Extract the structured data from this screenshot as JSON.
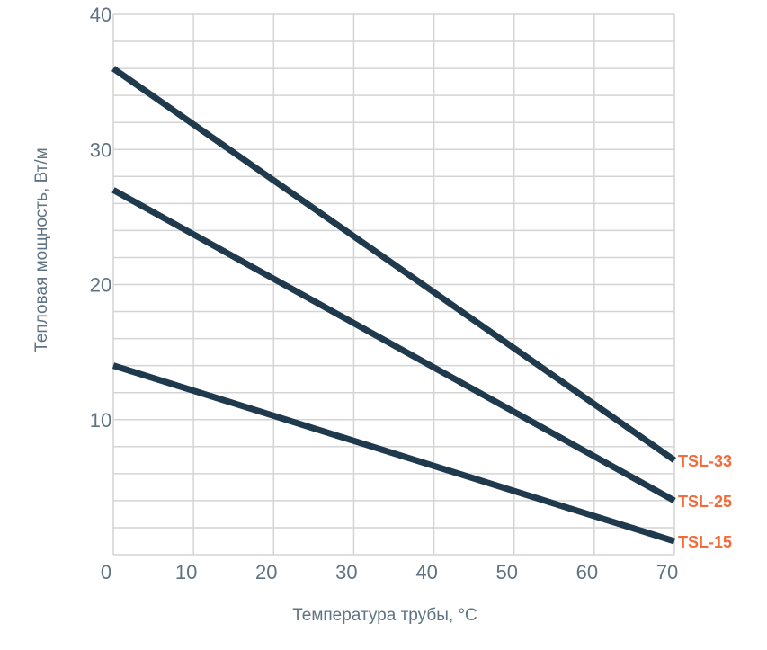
{
  "chart_data": {
    "type": "line",
    "xlabel": "Температура трубы, °C",
    "ylabel": "Тепловая мощность, Вт/м",
    "xlim": [
      0,
      70
    ],
    "ylim": [
      0,
      40
    ],
    "x_ticks": [
      0,
      10,
      20,
      30,
      40,
      50,
      60,
      70
    ],
    "y_ticks": [
      10,
      20,
      30,
      40
    ],
    "grid": true,
    "series": [
      {
        "name": "TSL-33",
        "x": [
          0,
          70
        ],
        "y": [
          36,
          7
        ]
      },
      {
        "name": "TSL-25",
        "x": [
          0,
          70
        ],
        "y": [
          27,
          4
        ]
      },
      {
        "name": "TSL-15",
        "x": [
          0,
          70
        ],
        "y": [
          14,
          1
        ]
      }
    ],
    "line_color": "#1f3a4d",
    "label_color": "#f26b3a",
    "grid_color": "#d4d4d4",
    "text_color": "#5f7383"
  }
}
